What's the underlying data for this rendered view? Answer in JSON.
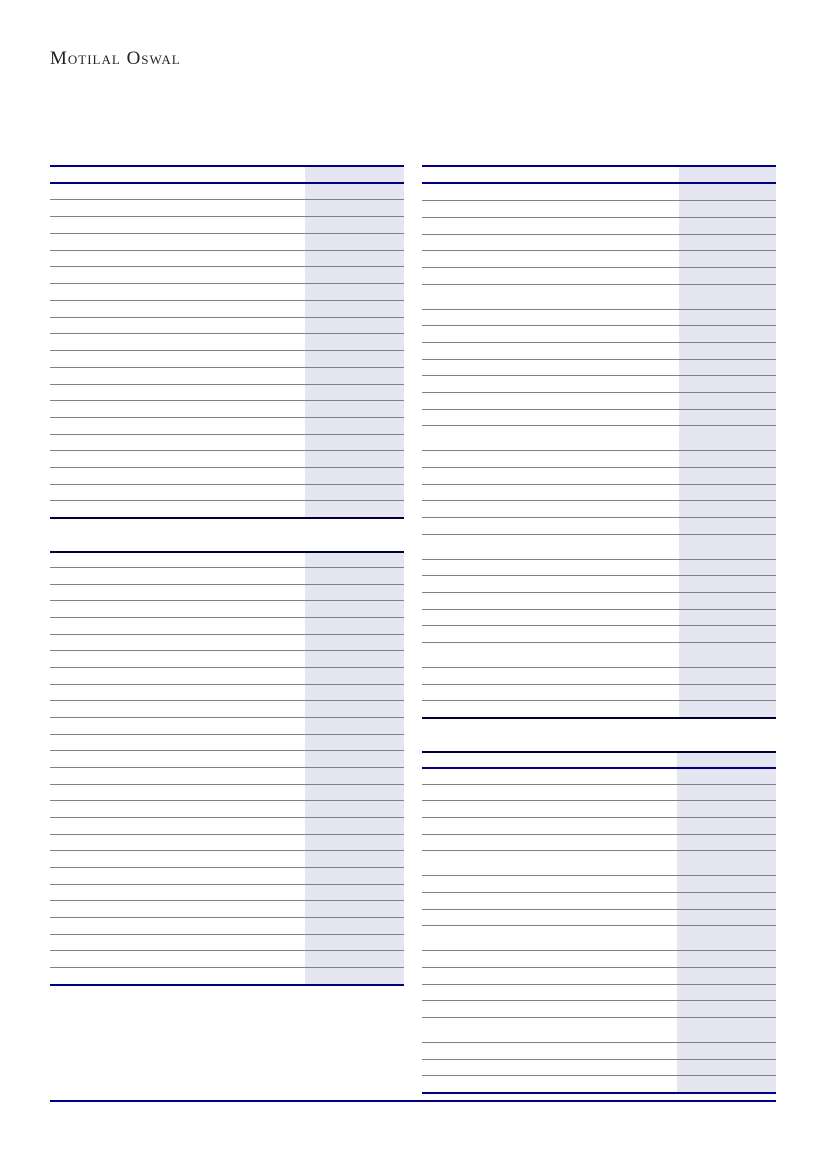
{
  "header": {
    "logo_text": "Motilal Oswal"
  },
  "colors": {
    "rule_accent": "#000080",
    "row_rule": "#808080",
    "highlight_column": "#e6e6f3"
  },
  "tables": [
    {
      "id": "left-top"
    },
    {
      "id": "left-bottom"
    },
    {
      "id": "right-top"
    },
    {
      "id": "right-bottom"
    }
  ]
}
